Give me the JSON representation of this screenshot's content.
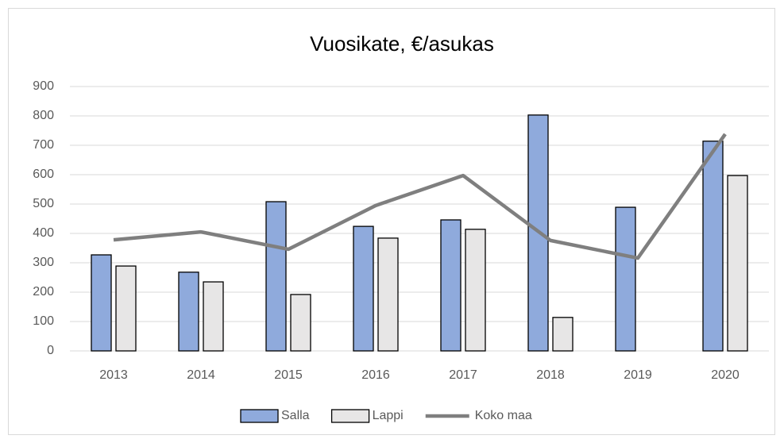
{
  "chart_data": {
    "type": "bar",
    "title": "Vuosikate, €/asukas",
    "categories": [
      "2013",
      "2014",
      "2015",
      "2016",
      "2017",
      "2018",
      "2019",
      "2020"
    ],
    "series": [
      {
        "name": "Salla",
        "color": "#8faadc",
        "values": [
          327,
          268,
          508,
          424,
          446,
          803,
          489,
          714
        ]
      },
      {
        "name": "Lappi",
        "color": "#e7e6e6",
        "values": [
          289,
          235,
          192,
          384,
          414,
          114,
          null,
          597
        ]
      },
      {
        "name": "Koko maa",
        "type": "line",
        "color": "#7f7f7f",
        "values": [
          378,
          405,
          346,
          495,
          597,
          376,
          316,
          738
        ]
      }
    ],
    "ylim": [
      0,
      900
    ],
    "yticks": [
      0,
      100,
      200,
      300,
      400,
      500,
      600,
      700,
      800,
      900
    ],
    "grid": true,
    "legend": "bottom"
  }
}
